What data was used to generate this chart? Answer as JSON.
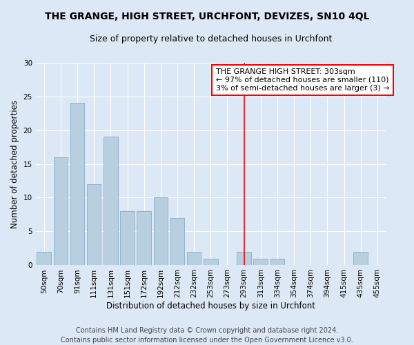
{
  "title": "THE GRANGE, HIGH STREET, URCHFONT, DEVIZES, SN10 4QL",
  "subtitle": "Size of property relative to detached houses in Urchfont",
  "xlabel": "Distribution of detached houses by size in Urchfont",
  "ylabel": "Number of detached properties",
  "footer": "Contains HM Land Registry data © Crown copyright and database right 2024.\nContains public sector information licensed under the Open Government Licence v3.0.",
  "bar_color": "#b8cfe0",
  "bar_edgecolor": "#88aac8",
  "background_color": "#dce8f5",
  "categories": [
    "50sqm",
    "70sqm",
    "91sqm",
    "111sqm",
    "131sqm",
    "151sqm",
    "172sqm",
    "192sqm",
    "212sqm",
    "232sqm",
    "253sqm",
    "273sqm",
    "293sqm",
    "313sqm",
    "334sqm",
    "354sqm",
    "374sqm",
    "394sqm",
    "415sqm",
    "435sqm",
    "455sqm"
  ],
  "values": [
    2,
    16,
    24,
    12,
    19,
    8,
    8,
    10,
    7,
    2,
    1,
    0,
    2,
    1,
    1,
    0,
    0,
    0,
    0,
    2,
    0
  ],
  "ylim": [
    0,
    30
  ],
  "yticks": [
    0,
    5,
    10,
    15,
    20,
    25,
    30
  ],
  "vline_index": 12,
  "vline_label": "THE GRANGE HIGH STREET: 303sqm",
  "annotation_line1": "← 97% of detached houses are smaller (110)",
  "annotation_line2": "3% of semi-detached houses are larger (3) →",
  "grid_color": "#ffffff",
  "title_fontsize": 10,
  "subtitle_fontsize": 9,
  "axis_label_fontsize": 8.5,
  "tick_fontsize": 7.5,
  "annotation_fontsize": 8,
  "footer_fontsize": 7
}
